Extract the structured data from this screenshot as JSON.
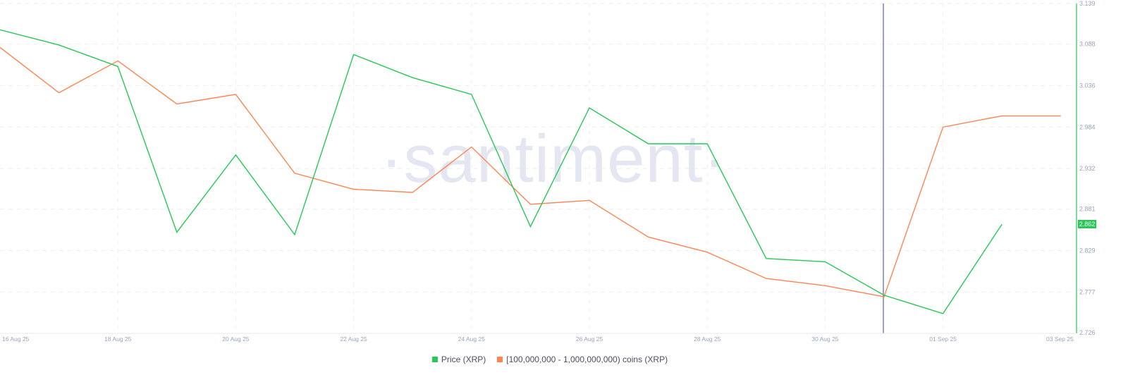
{
  "chart_data": {
    "type": "line",
    "title": "",
    "watermark": "·santiment·",
    "xlabel": "",
    "ylabel": "",
    "x": [
      "16 Aug 25",
      "17 Aug 25",
      "18 Aug 25",
      "19 Aug 25",
      "20 Aug 25",
      "21 Aug 25",
      "22 Aug 25",
      "23 Aug 25",
      "24 Aug 25",
      "25 Aug 25",
      "26 Aug 25",
      "27 Aug 25",
      "28 Aug 25",
      "29 Aug 25",
      "30 Aug 25",
      "31 Aug 25",
      "01 Sep 25",
      "02 Sep 25",
      "03 Sep 25"
    ],
    "x_tick_labels": [
      "16 Aug 25",
      "18 Aug 25",
      "20 Aug 25",
      "22 Aug 25",
      "24 Aug 25",
      "26 Aug 25",
      "28 Aug 25",
      "30 Aug 25",
      "01 Sep 25",
      "03 Sep 25"
    ],
    "y_tick_labels": [
      "3.139",
      "3.088",
      "3.036",
      "2.984",
      "2.932",
      "2.881",
      "2.829",
      "2.777",
      "2.726"
    ],
    "ylim": [
      2.726,
      3.139
    ],
    "grid": true,
    "legend_position": "bottom-center",
    "current_price_label": "2.862",
    "crosshair_x": "31 Aug 25",
    "series": [
      {
        "name": "Price (XRP)",
        "color": "#26c953",
        "axis": "right",
        "values": [
          3.106,
          3.087,
          3.06,
          2.852,
          2.949,
          2.849,
          3.075,
          3.046,
          3.025,
          2.859,
          3.008,
          2.963,
          2.963,
          2.819,
          2.815,
          2.773,
          2.75,
          2.862,
          null
        ]
      },
      {
        "name": "[100,000,000 - 1,000,000,000) coins (XRP)",
        "color": "#ff8450",
        "axis": "hidden",
        "values_pixel_relative": [
          3.084,
          3.027,
          3.067,
          3.013,
          3.025,
          2.926,
          2.906,
          2.902,
          2.959,
          2.887,
          2.892,
          2.846,
          2.827,
          2.794,
          2.785,
          2.771,
          2.984,
          2.998,
          2.998
        ]
      }
    ]
  },
  "legend": {
    "items": [
      {
        "label": "Price (XRP)",
        "color": "#26c953"
      },
      {
        "label": "[100,000,000 - 1,000,000,000) coins (XRP)",
        "color": "#ff8450"
      }
    ]
  }
}
